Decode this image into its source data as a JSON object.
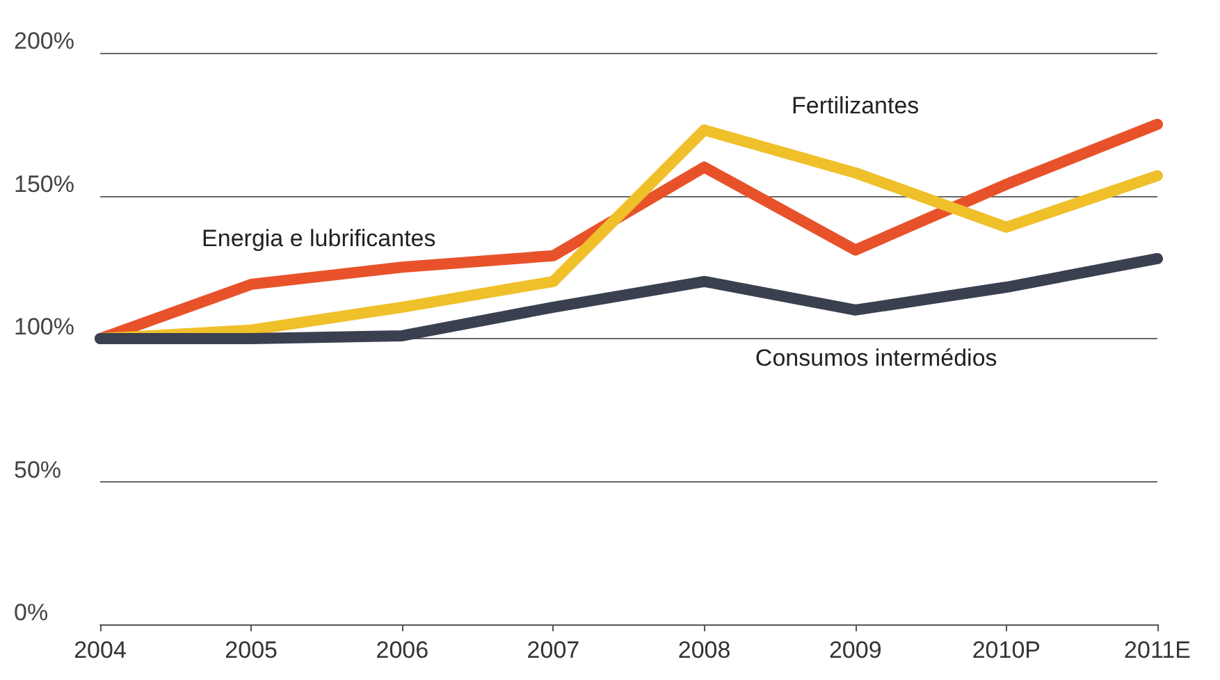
{
  "chart_data": {
    "type": "line",
    "categories": [
      "2004",
      "2005",
      "2006",
      "2007",
      "2008",
      "2009",
      "2010P",
      "2011E"
    ],
    "series": [
      {
        "name": "Energia e lubrificantes",
        "color": "#e8522a",
        "values": [
          100,
          119,
          125,
          129,
          160,
          131,
          154,
          175
        ]
      },
      {
        "name": "Fertilizantes",
        "color": "#f0c02a",
        "values": [
          100,
          103,
          111,
          120,
          173,
          158,
          139,
          157
        ]
      },
      {
        "name": "Consumos intermédios",
        "color": "#3a4050",
        "values": [
          100,
          100,
          101,
          111,
          120,
          110,
          118,
          128
        ]
      }
    ],
    "ylim": [
      0,
      200
    ],
    "yticks": [
      {
        "value": 0,
        "label": "0%"
      },
      {
        "value": 50,
        "label": "50%"
      },
      {
        "value": 100,
        "label": "100%"
      },
      {
        "value": 150,
        "label": "150%"
      },
      {
        "value": 200,
        "label": "200%"
      }
    ],
    "grid": "y",
    "legend": false,
    "marker": "none",
    "line_style": "solid"
  }
}
